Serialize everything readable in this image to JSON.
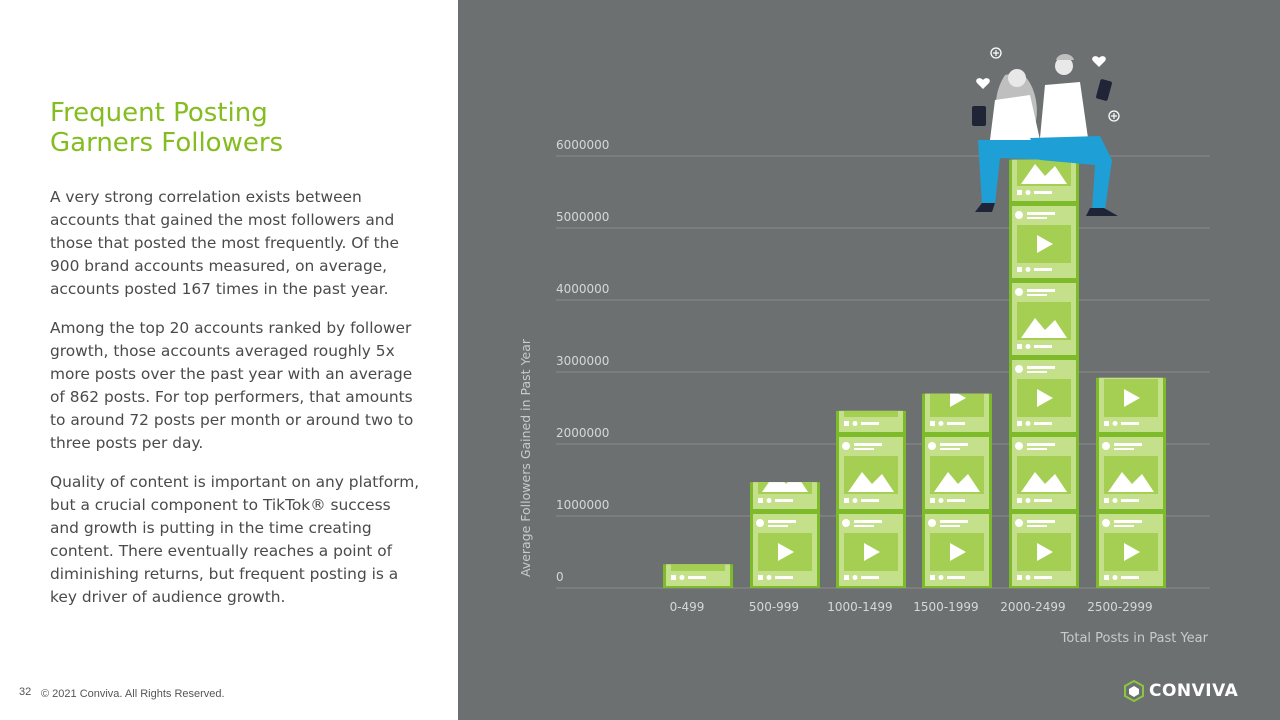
{
  "slide": {
    "title_lines": [
      "Frequent Posting",
      "Garners Followers"
    ],
    "paragraphs": [
      "A very strong correlation exists between accounts that gained the most followers and those that posted the most frequently. Of the 900 brand accounts measured, on average, accounts posted 167 times in the past year.",
      "Among the top 20 accounts ranked by follower growth, those accounts averaged roughly 5x more posts over the past year with an average of 862 posts. For top performers, that amounts to around 72 posts per month or around two to three posts per day.",
      "Quality of content is important on any platform, but a crucial component to TikTok® success and growth is putting in the time creating content. There eventually reaches a point of diminishing returns, but frequent posting is a key driver of audience growth."
    ],
    "page_number": "32",
    "copyright": "© 2021 Conviva. All Rights Reserved.",
    "logo_text": "CONVIVA"
  },
  "chart_data": {
    "type": "bar",
    "categories": [
      "0-499",
      "500-999",
      "1000-1499",
      "1500-1999",
      "2000-2499",
      "2500-2999"
    ],
    "values": [
      330000,
      1470000,
      2460000,
      2700000,
      5950000,
      2920000
    ],
    "ylim": [
      0,
      6000000
    ],
    "yticks": [
      0,
      1000000,
      2000000,
      3000000,
      4000000,
      5000000,
      6000000
    ],
    "ytick_labels": [
      "0",
      "1000000",
      "2000000",
      "3000000",
      "4000000",
      "5000000",
      "6000000"
    ],
    "xlabel": "Total Posts in Past Year",
    "ylabel": "Average Followers Gained in Past Year",
    "grid": true,
    "colors": {
      "background": "#6d7070",
      "bar_border": "#7dbb2a",
      "bar_fill": "#c5e08a",
      "bar_inner": "#a5cf52",
      "text": "#d6d8d8",
      "grid": "#8a8d8d"
    }
  }
}
